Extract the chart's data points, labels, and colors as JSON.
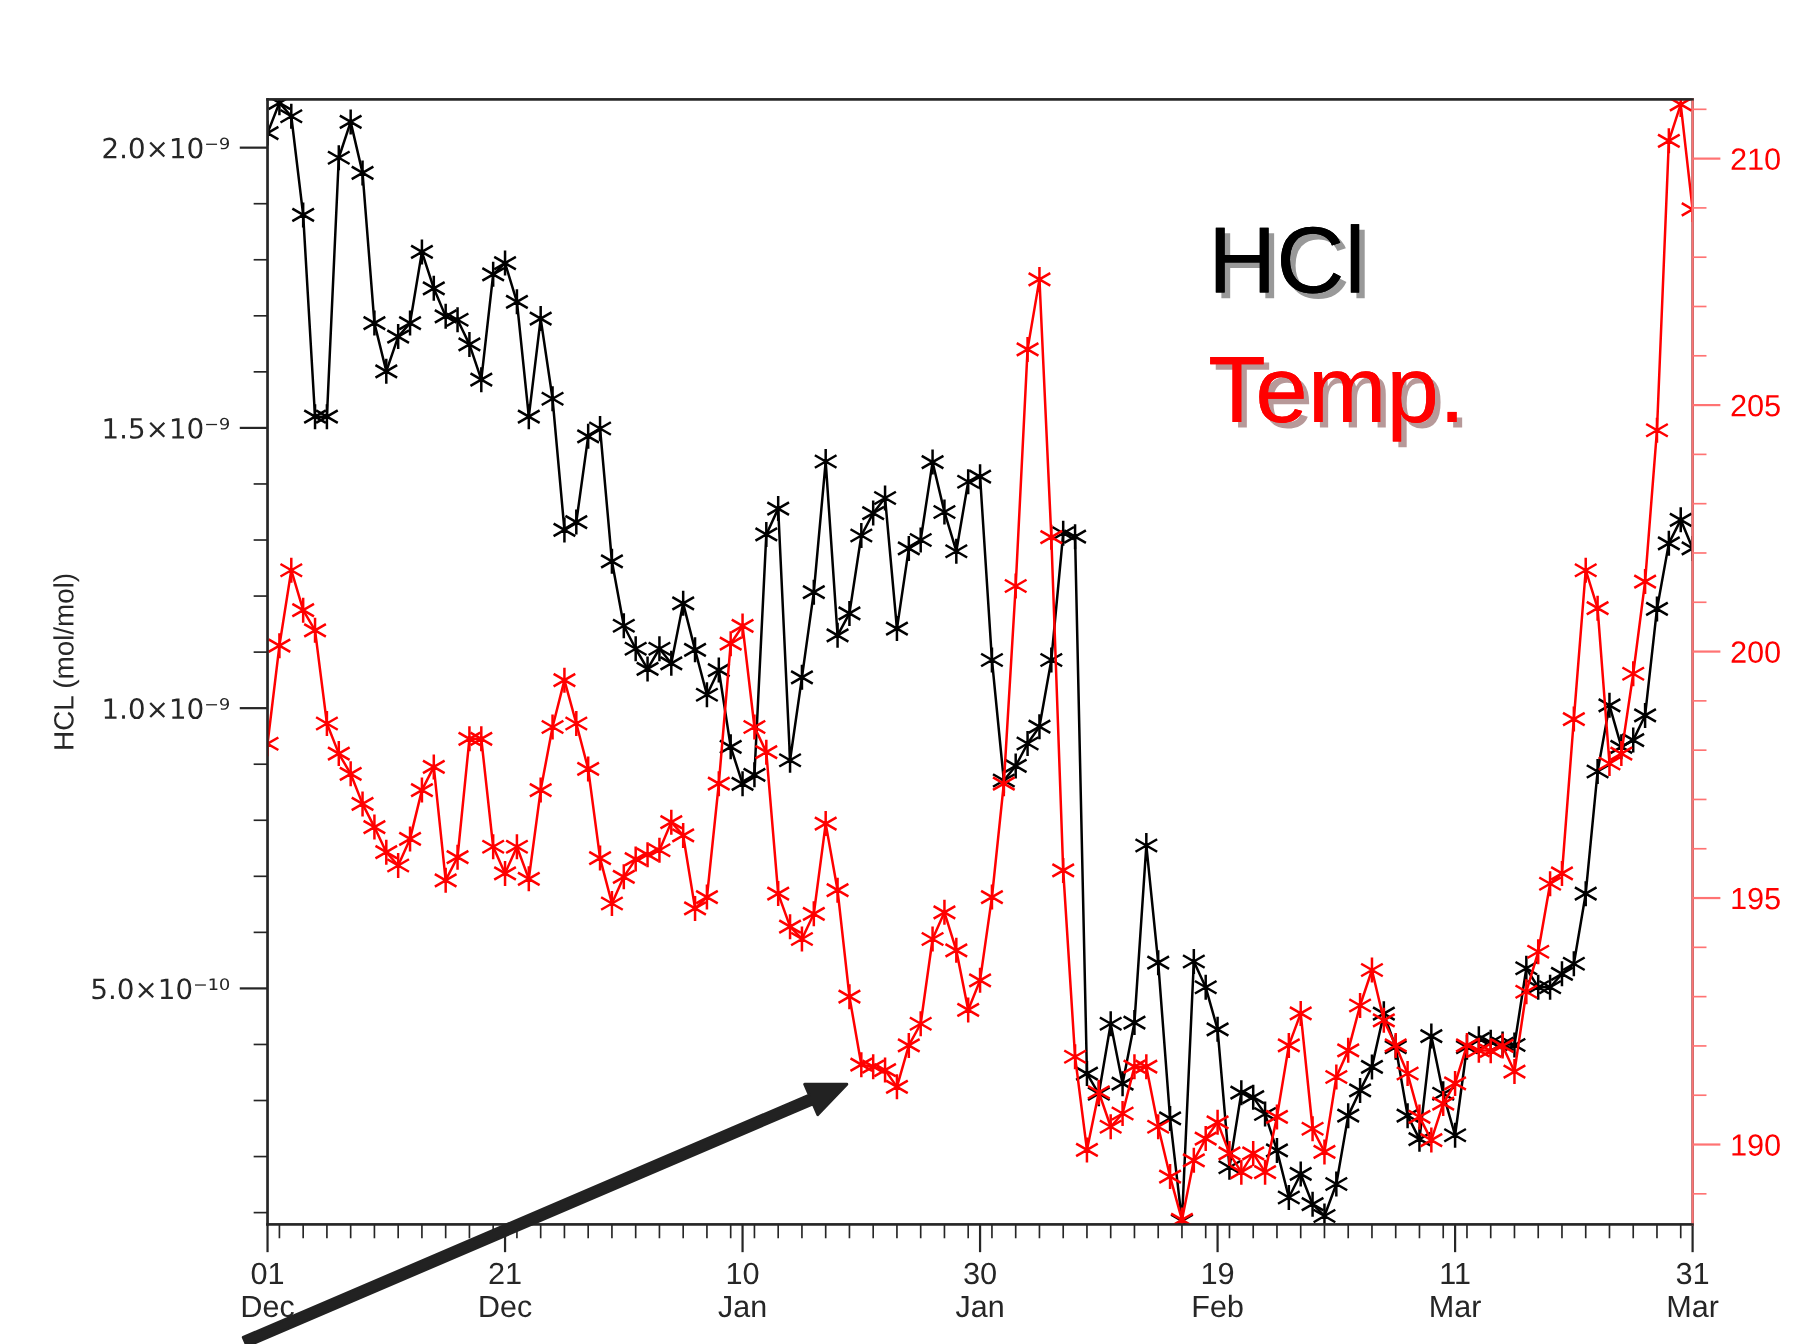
{
  "chart_data": {
    "type": "line",
    "ylabel": "HCL (mol/mol)",
    "marker": "cross",
    "line_style": "solid",
    "grid": false,
    "legend": "top right",
    "categories": [
      "01\nDec",
      null,
      null,
      null,
      null,
      null,
      null,
      null,
      null,
      null,
      null,
      null,
      null,
      null,
      null,
      null,
      null,
      null,
      null,
      null,
      "21\nDec",
      null,
      null,
      null,
      null,
      null,
      null,
      null,
      null,
      null,
      null,
      null,
      null,
      null,
      null,
      null,
      null,
      null,
      null,
      null,
      "10\nJan",
      null,
      null,
      null,
      null,
      null,
      null,
      null,
      null,
      null,
      null,
      null,
      null,
      null,
      null,
      null,
      null,
      null,
      null,
      null,
      "30\nJan",
      null,
      null,
      null,
      null,
      null,
      null,
      null,
      null,
      null,
      null,
      null,
      null,
      null,
      null,
      null,
      null,
      null,
      null,
      null,
      "19\nFeb",
      null,
      null,
      null,
      null,
      null,
      null,
      null,
      null,
      null,
      null,
      null,
      null,
      null,
      null,
      null,
      null,
      null,
      null,
      null,
      "11\nMar",
      null,
      null,
      null,
      null,
      null,
      null,
      null,
      null,
      null,
      null,
      null,
      null,
      null,
      null,
      null,
      null,
      null,
      null,
      null,
      "31\nMar"
    ],
    "ylim": [
      7.9e-11,
      2.086e-09
    ],
    "yticks": [
      {
        "value": 1e-10,
        "label": null
      },
      {
        "value": 2e-10,
        "label": null
      },
      {
        "value": 3e-10,
        "label": null
      },
      {
        "value": 4e-10,
        "label": null
      },
      {
        "value": 5e-10,
        "label": "5.0×10⁻¹⁰"
      },
      {
        "value": 6e-10,
        "label": null
      },
      {
        "value": 7e-10,
        "label": null
      },
      {
        "value": 8e-10,
        "label": null
      },
      {
        "value": 9e-10,
        "label": null
      },
      {
        "value": 1e-09,
        "label": "1.0×10⁻⁹"
      },
      {
        "value": 1.1e-09,
        "label": null
      },
      {
        "value": 1.2e-09,
        "label": null
      },
      {
        "value": 1.3e-09,
        "label": null
      },
      {
        "value": 1.4e-09,
        "label": null
      },
      {
        "value": 1.5e-09,
        "label": "1.5×10⁻⁹"
      },
      {
        "value": 1.6e-09,
        "label": null
      },
      {
        "value": 1.7e-09,
        "label": null
      },
      {
        "value": 1.8e-09,
        "label": null
      },
      {
        "value": 1.9e-09,
        "label": null
      },
      {
        "value": 2e-09,
        "label": "2.0×10⁻⁹"
      }
    ],
    "y2lim": [
      188.38,
      211.2
    ],
    "y2ticks": [
      {
        "value": 189,
        "label": null
      },
      190,
      {
        "value": 191,
        "label": null
      },
      {
        "value": 192,
        "label": null
      },
      {
        "value": 193,
        "label": null
      },
      {
        "value": 194,
        "label": null
      },
      195,
      {
        "value": 196,
        "label": null
      },
      {
        "value": 197,
        "label": null
      },
      {
        "value": 198,
        "label": null
      },
      {
        "value": 199,
        "label": null
      },
      200,
      {
        "value": 201,
        "label": null
      },
      {
        "value": 202,
        "label": null
      },
      {
        "value": 203,
        "label": null
      },
      {
        "value": 204,
        "label": null
      },
      205,
      {
        "value": 206,
        "label": null
      },
      {
        "value": 207,
        "label": null
      },
      {
        "value": 208,
        "label": null
      },
      {
        "value": 209,
        "label": null
      },
      210,
      {
        "value": 211,
        "label": null
      }
    ],
    "series": [
      {
        "name": "HCl",
        "color": "#000000",
        "values": [
          2.026e-09,
          2.08e-09,
          2.056e-09,
          1.88e-09,
          1.52e-09,
          1.52e-09,
          1.982e-09,
          2.046e-09,
          1.955e-09,
          1.687e-09,
          1.601e-09,
          1.663e-09,
          1.687e-09,
          1.814e-09,
          1.749e-09,
          1.699e-09,
          1.693e-09,
          1.649e-09,
          1.586e-09,
          1.774e-09,
          1.794e-09,
          1.725e-09,
          1.52e-09,
          1.695e-09,
          1.552e-09,
          1.318e-09,
          1.332e-09,
          1.485e-09,
          1.499e-09,
          1.262e-09,
          1.147e-09,
          1.106e-09,
          1.07e-09,
          1.106e-09,
          1.08e-09,
          1.187e-09,
          1.104e-09,
          1.024e-09,
          1.068e-09,
          9.31e-10,
          8.65e-10,
          8.81e-10,
          1.31e-09,
          1.356e-09,
          9.07e-10,
          1.055e-09,
          1.207e-09,
          1.44e-09,
          1.13e-09,
          1.169e-09,
          1.308e-09,
          1.348e-09,
          1.375e-09,
          1.142e-09,
          1.285e-09,
          1.3e-09,
          1.439e-09,
          1.35e-09,
          1.28e-09,
          1.404e-09,
          1.413e-09,
          1.086e-09,
          8.71e-10,
          8.97e-10,
          9.37e-10,
          9.67e-10,
          1.086e-09,
          1.312e-09,
          1.306e-09,
          3.48e-10,
          3.12e-10,
          4.37e-10,
          3.3e-10,
          4.39e-10,
          7.55e-10,
          5.46e-10,
          2.68e-10,
          8.5e-11,
          5.48e-10,
          5.02e-10,
          4.27e-10,
          1.81e-10,
          3.14e-10,
          3.06e-10,
          2.76e-10,
          2.11e-10,
          1.27e-10,
          1.69e-10,
          1.15e-10,
          9.4e-11,
          1.51e-10,
          2.73e-10,
          3.18e-10,
          3.6e-10,
          4.55e-10,
          3.95e-10,
          2.73e-10,
          2.31e-10,
          4.15e-10,
          3.12e-10,
          2.38e-10,
          3.95e-10,
          4.1e-10,
          4.04e-10,
          4.01e-10,
          3.99e-10,
          5.36e-10,
          5.02e-10,
          5.02e-10,
          5.26e-10,
          5.44e-10,
          6.69e-10,
          8.87e-10,
          1.005e-09,
          9.31e-10,
          9.43e-10,
          9.87e-10,
          1.177e-09,
          1.294e-09,
          1.336e-09,
          1.285e-09
        ]
      },
      {
        "name": "Temp.",
        "color": "#ff0000",
        "axis": "y2",
        "values": [
          198.13,
          200.12,
          201.65,
          200.84,
          200.43,
          198.54,
          197.93,
          197.52,
          196.91,
          196.44,
          195.93,
          195.66,
          196.2,
          197.19,
          197.66,
          195.36,
          195.83,
          198.23,
          198.23,
          196.04,
          195.5,
          196.04,
          195.39,
          197.19,
          198.47,
          199.42,
          198.54,
          197.62,
          195.81,
          194.89,
          195.43,
          195.79,
          195.88,
          195.97,
          196.54,
          196.27,
          194.79,
          195.02,
          197.32,
          200.16,
          200.52,
          198.47,
          197.96,
          195.09,
          194.42,
          194.17,
          194.68,
          196.51,
          195.16,
          193.0,
          191.62,
          191.58,
          191.51,
          191.17,
          192.01,
          192.45,
          194.17,
          194.71,
          193.94,
          192.73,
          193.33,
          195.02,
          197.32,
          201.33,
          206.13,
          207.55,
          202.32,
          195.56,
          191.78,
          189.89,
          191.06,
          190.36,
          190.63,
          191.58,
          191.58,
          190.36,
          189.35,
          188.47,
          189.68,
          190.12,
          190.45,
          189.82,
          189.44,
          189.82,
          189.44,
          190.56,
          192.01,
          192.66,
          190.32,
          189.85,
          191.37,
          191.91,
          192.82,
          193.54,
          192.52,
          192.01,
          191.44,
          190.56,
          190.09,
          190.83,
          191.24,
          192.01,
          191.91,
          191.9,
          192.0,
          191.48,
          193.1,
          193.91,
          195.29,
          195.5,
          198.63,
          201.65,
          200.88,
          197.73,
          197.93,
          199.55,
          201.42,
          204.49,
          210.36,
          211.1,
          208.97
        ]
      }
    ]
  }
}
